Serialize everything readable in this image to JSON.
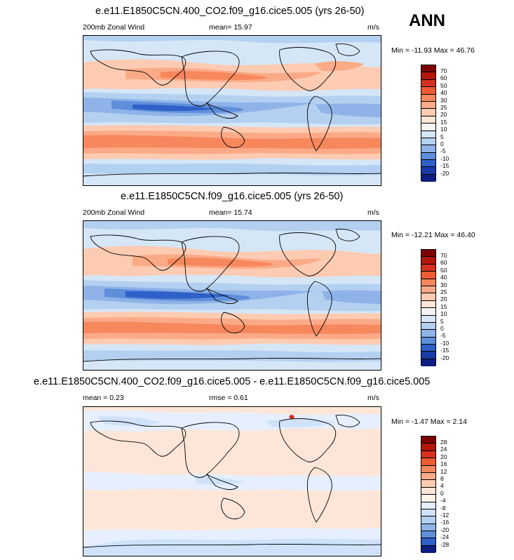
{
  "season": "ANN",
  "panels": [
    {
      "title": "e.e11.E1850C5CN.400_CO2.f09_g16.cice5.005 (yrs 26-50)",
      "left_label": "200mb Zonal Wind",
      "center_label": "mean=  15.97",
      "units": "m/s",
      "minmax": "Min = -11.93 Max =  46.76",
      "colorbar_labels": [
        "70",
        "60",
        "50",
        "40",
        "30",
        "25",
        "20",
        "15",
        "10",
        "5",
        "0",
        "-5",
        "-10",
        "-15",
        "-20"
      ]
    },
    {
      "title": "e.e11.E1850C5CN.f09_g16.cice5.005 (yrs 26-50)",
      "left_label": "200mb Zonal Wind",
      "center_label": "mean=  15.74",
      "units": "m/s",
      "minmax": "Min = -12.21 Max =  46.40",
      "colorbar_labels": [
        "70",
        "60",
        "50",
        "40",
        "30",
        "25",
        "20",
        "15",
        "10",
        "5",
        "0",
        "-5",
        "-10",
        "-15",
        "-20"
      ]
    },
    {
      "title": "e.e11.E1850C5CN.400_CO2.f09_g16.cice5.005 - e.e11.E1850C5CN.f09_g16.cice5.005",
      "left_label": "mean =   0.23",
      "center_label": "rmse =   0.61",
      "units": "m/s",
      "minmax": "Min =  -1.47 Max =   2.14",
      "colorbar_labels": [
        "28",
        "24",
        "20",
        "16",
        "12",
        "8",
        "4",
        "0",
        "-4",
        "-8",
        "-12",
        "-16",
        "-20",
        "-24",
        "-28"
      ]
    }
  ],
  "colorbar_colors": [
    "#7f0000",
    "#b3150b",
    "#d7301f",
    "#ef5b32",
    "#f7875d",
    "#fbaa87",
    "#fdcbb2",
    "#fde6d8",
    "#f4f4f4",
    "#d5e6f7",
    "#b4d0f0",
    "#8fb3e8",
    "#5f8fdb",
    "#2f5fc8",
    "#1a3aa8",
    "#0d1e80"
  ],
  "diff_colorbar_colors": [
    "#7f0000",
    "#b3150b",
    "#d7301f",
    "#ef5b32",
    "#f7875d",
    "#fbaa87",
    "#fdcbb2",
    "#fde6d8",
    "#fff3ea",
    "#e5efff",
    "#cfe2fa",
    "#b4d0f0",
    "#8fb3e8",
    "#5f8fdb",
    "#2f5fc8",
    "#0d1e80"
  ]
}
